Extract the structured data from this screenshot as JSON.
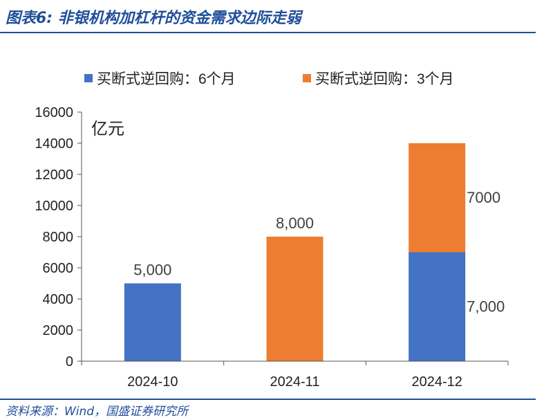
{
  "header": {
    "title": "图表6:  非银机构加杠杆的资金需求边际走弱"
  },
  "footer": {
    "source": "资料来源：Wind，国盛证券研究所"
  },
  "colors": {
    "series_6m": "#4472c4",
    "series_3m": "#ed7d31",
    "rule": "#1f4e9a",
    "text": "#222222",
    "label": "#404040"
  },
  "chart_data": {
    "type": "bar",
    "stacked": true,
    "unit_label": "亿元",
    "categories": [
      "2024-10",
      "2024-11",
      "2024-12"
    ],
    "series": [
      {
        "name": "买断式逆回购：6个月",
        "values": [
          5000,
          0,
          7000
        ],
        "labels": [
          "5,000",
          "",
          "7,000"
        ]
      },
      {
        "name": "买断式逆回购：3个月",
        "values": [
          0,
          8000,
          7000
        ],
        "labels": [
          "",
          "8,000",
          "7000"
        ]
      }
    ],
    "ylim": [
      0,
      16000
    ],
    "yticks": [
      0,
      2000,
      4000,
      6000,
      8000,
      10000,
      12000,
      14000,
      16000
    ],
    "ytick_labels": [
      "0",
      "2000",
      "4000",
      "6000",
      "8000",
      "10000",
      "12000",
      "14000",
      "16000"
    ],
    "legend_position": "top",
    "grid": false
  }
}
